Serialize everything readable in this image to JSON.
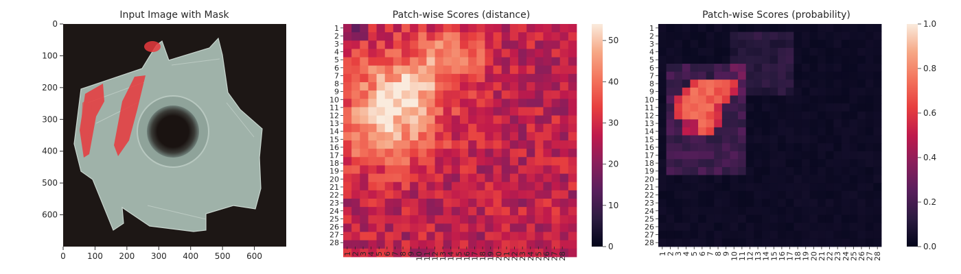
{
  "chart_data": [
    {
      "type": "image",
      "title": "Input Image with Mask",
      "xlim": [
        0,
        700
      ],
      "ylim": [
        700,
        0
      ],
      "xticks": [
        0,
        100,
        200,
        300,
        400,
        500,
        600
      ],
      "yticks": [
        0,
        100,
        200,
        300,
        400,
        500,
        600
      ],
      "description_colors": {
        "background": "#1d1715",
        "part": "#a7b9b0",
        "mask": "#e83a3d"
      }
    },
    {
      "type": "heatmap",
      "title": "Patch-wise Scores (distance)",
      "colormap": "rocket",
      "vmin": 0,
      "vmax": 54,
      "colorbar_ticks": [
        0,
        10,
        20,
        30,
        40,
        50
      ],
      "x_tick_labels": [
        "1",
        "2",
        "3",
        "4",
        "5",
        "6",
        "7",
        "8",
        "9",
        "10",
        "11",
        "12",
        "13",
        "14",
        "15",
        "16",
        "17",
        "18",
        "19",
        "20",
        "21",
        "22",
        "23",
        "24",
        "25",
        "26",
        "27",
        "28"
      ],
      "y_tick_labels": [
        "1",
        "2",
        "3",
        "4",
        "5",
        "6",
        "7",
        "8",
        "9",
        "10",
        "11",
        "12",
        "13",
        "14",
        "15",
        "16",
        "17",
        "18",
        "19",
        "20",
        "21",
        "22",
        "23",
        "24",
        "25",
        "26",
        "27",
        "28"
      ],
      "base": 27,
      "hotspots": [
        {
          "row": 10.5,
          "col": 6.5,
          "sr": 4.5,
          "sc": 4.2,
          "amp": 24
        },
        {
          "row": 8.5,
          "col": 8.5,
          "sr": 1.6,
          "sc": 1.6,
          "amp": 8
        },
        {
          "row": 4.5,
          "col": 13.5,
          "sr": 2.5,
          "sc": 3.0,
          "amp": 14
        },
        {
          "row": 14.5,
          "col": 3.5,
          "sr": 2.5,
          "sc": 1.6,
          "amp": 6
        }
      ]
    },
    {
      "type": "heatmap",
      "title": "Patch-wise Scores (probability)",
      "colormap": "rocket",
      "vmin": 0,
      "vmax": 1,
      "colorbar_ticks": [
        "0.0",
        "0.2",
        "0.4",
        "0.6",
        "0.8",
        "1.0"
      ],
      "x_tick_labels": [
        "1",
        "2",
        "3",
        "4",
        "5",
        "6",
        "7",
        "8",
        "9",
        "10",
        "11",
        "12",
        "13",
        "14",
        "15",
        "16",
        "17",
        "18",
        "19",
        "20",
        "21",
        "22",
        "23",
        "24",
        "25",
        "26",
        "27",
        "28"
      ],
      "y_tick_labels": [
        "1",
        "2",
        "3",
        "4",
        "5",
        "6",
        "7",
        "8",
        "9",
        "10",
        "11",
        "12",
        "13",
        "14",
        "15",
        "16",
        "17",
        "18",
        "19",
        "20",
        "21",
        "22",
        "23",
        "24",
        "25",
        "26",
        "27",
        "28"
      ],
      "hot_region": [
        {
          "row": 8,
          "from": 5,
          "to": 10
        },
        {
          "row": 9,
          "from": 4,
          "to": 10
        },
        {
          "row": 10,
          "from": 3,
          "to": 9
        },
        {
          "row": 11,
          "from": 3,
          "to": 8
        },
        {
          "row": 12,
          "from": 3,
          "to": 8
        },
        {
          "row": 13,
          "from": 4,
          "to": 8
        },
        {
          "row": 14,
          "from": 4,
          "to": 7
        }
      ]
    }
  ]
}
